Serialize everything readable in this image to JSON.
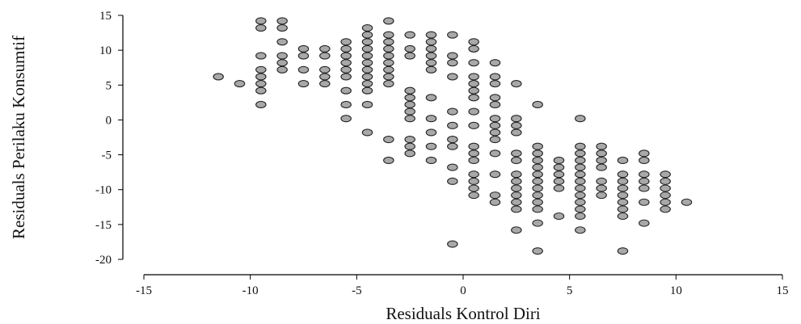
{
  "chart_data": {
    "type": "scatter",
    "title": "",
    "xlabel": "Residuals Kontrol Diri",
    "ylabel": "Residuals Perilaku Konsumtif",
    "xlim": [
      -15,
      15
    ],
    "ylim": [
      -20,
      15
    ],
    "xticks": [
      -15,
      -10,
      -5,
      0,
      5,
      10,
      15
    ],
    "yticks": [
      -20,
      -15,
      -10,
      -5,
      0,
      5,
      10,
      15
    ],
    "grid": false,
    "legend": "none",
    "marker_fill": "#a8a8a8",
    "marker_stroke": "#222222",
    "points": [
      [
        -11.5,
        6.2
      ],
      [
        -10.5,
        5.2
      ],
      [
        -9.5,
        14.2
      ],
      [
        -9.5,
        13.2
      ],
      [
        -9.5,
        9.2
      ],
      [
        -9.5,
        7.2
      ],
      [
        -9.5,
        6.2
      ],
      [
        -9.5,
        5.2
      ],
      [
        -9.5,
        4.2
      ],
      [
        -9.5,
        2.2
      ],
      [
        -8.5,
        14.2
      ],
      [
        -8.5,
        13.2
      ],
      [
        -8.5,
        11.2
      ],
      [
        -8.5,
        9.2
      ],
      [
        -8.5,
        8.2
      ],
      [
        -8.5,
        7.2
      ],
      [
        -7.5,
        10.2
      ],
      [
        -7.5,
        9.2
      ],
      [
        -7.5,
        7.2
      ],
      [
        -7.5,
        5.2
      ],
      [
        -6.5,
        10.2
      ],
      [
        -6.5,
        9.2
      ],
      [
        -6.5,
        7.2
      ],
      [
        -6.5,
        6.2
      ],
      [
        -6.5,
        5.2
      ],
      [
        -5.5,
        11.2
      ],
      [
        -5.5,
        10.2
      ],
      [
        -5.5,
        9.2
      ],
      [
        -5.5,
        8.2
      ],
      [
        -5.5,
        7.2
      ],
      [
        -5.5,
        6.2
      ],
      [
        -5.5,
        4.2
      ],
      [
        -5.5,
        2.2
      ],
      [
        -5.5,
        0.2
      ],
      [
        -4.5,
        13.2
      ],
      [
        -4.5,
        12.2
      ],
      [
        -4.5,
        11.2
      ],
      [
        -4.5,
        10.2
      ],
      [
        -4.5,
        9.2
      ],
      [
        -4.5,
        8.2
      ],
      [
        -4.5,
        7.2
      ],
      [
        -4.5,
        6.2
      ],
      [
        -4.5,
        5.2
      ],
      [
        -4.5,
        4.2
      ],
      [
        -4.5,
        2.2
      ],
      [
        -4.5,
        -1.8
      ],
      [
        -3.5,
        14.2
      ],
      [
        -3.5,
        12.2
      ],
      [
        -3.5,
        11.2
      ],
      [
        -3.5,
        10.2
      ],
      [
        -3.5,
        9.2
      ],
      [
        -3.5,
        8.2
      ],
      [
        -3.5,
        7.2
      ],
      [
        -3.5,
        6.2
      ],
      [
        -3.5,
        5.2
      ],
      [
        -3.5,
        -2.8
      ],
      [
        -3.5,
        -5.8
      ],
      [
        -2.5,
        12.2
      ],
      [
        -2.5,
        10.2
      ],
      [
        -2.5,
        9.2
      ],
      [
        -2.5,
        4.2
      ],
      [
        -2.5,
        3.2
      ],
      [
        -2.5,
        2.2
      ],
      [
        -2.5,
        1.2
      ],
      [
        -2.5,
        0.2
      ],
      [
        -2.5,
        -2.8
      ],
      [
        -2.5,
        -3.8
      ],
      [
        -2.5,
        -4.8
      ],
      [
        -1.5,
        12.2
      ],
      [
        -1.5,
        11.2
      ],
      [
        -1.5,
        10.2
      ],
      [
        -1.5,
        9.2
      ],
      [
        -1.5,
        8.2
      ],
      [
        -1.5,
        7.2
      ],
      [
        -1.5,
        3.2
      ],
      [
        -1.5,
        0.2
      ],
      [
        -1.5,
        -1.8
      ],
      [
        -1.5,
        -3.8
      ],
      [
        -1.5,
        -5.8
      ],
      [
        -0.5,
        12.2
      ],
      [
        -0.5,
        9.2
      ],
      [
        -0.5,
        8.2
      ],
      [
        -0.5,
        6.2
      ],
      [
        -0.5,
        1.2
      ],
      [
        -0.5,
        -0.8
      ],
      [
        -0.5,
        -2.8
      ],
      [
        -0.5,
        -3.8
      ],
      [
        -0.5,
        -6.8
      ],
      [
        -0.5,
        -8.8
      ],
      [
        -0.5,
        -17.8
      ],
      [
        0.5,
        11.2
      ],
      [
        0.5,
        10.2
      ],
      [
        0.5,
        8.2
      ],
      [
        0.5,
        6.2
      ],
      [
        0.5,
        5.2
      ],
      [
        0.5,
        4.2
      ],
      [
        0.5,
        3.2
      ],
      [
        0.5,
        1.2
      ],
      [
        0.5,
        -0.8
      ],
      [
        0.5,
        -3.8
      ],
      [
        0.5,
        -4.8
      ],
      [
        0.5,
        -5.8
      ],
      [
        0.5,
        -7.8
      ],
      [
        0.5,
        -8.8
      ],
      [
        0.5,
        -9.8
      ],
      [
        0.5,
        -10.8
      ],
      [
        1.5,
        8.2
      ],
      [
        1.5,
        6.2
      ],
      [
        1.5,
        5.2
      ],
      [
        1.5,
        3.2
      ],
      [
        1.5,
        2.2
      ],
      [
        1.5,
        0.2
      ],
      [
        1.5,
        -0.8
      ],
      [
        1.5,
        -1.8
      ],
      [
        1.5,
        -2.8
      ],
      [
        1.5,
        -4.8
      ],
      [
        1.5,
        -7.8
      ],
      [
        1.5,
        -10.8
      ],
      [
        1.5,
        -11.8
      ],
      [
        2.5,
        5.2
      ],
      [
        2.5,
        0.2
      ],
      [
        2.5,
        -0.8
      ],
      [
        2.5,
        -1.8
      ],
      [
        2.5,
        -4.8
      ],
      [
        2.5,
        -5.8
      ],
      [
        2.5,
        -7.8
      ],
      [
        2.5,
        -8.8
      ],
      [
        2.5,
        -9.8
      ],
      [
        2.5,
        -10.8
      ],
      [
        2.5,
        -11.8
      ],
      [
        2.5,
        -12.8
      ],
      [
        2.5,
        -15.8
      ],
      [
        3.5,
        2.2
      ],
      [
        3.5,
        -3.8
      ],
      [
        3.5,
        -4.8
      ],
      [
        3.5,
        -5.8
      ],
      [
        3.5,
        -6.8
      ],
      [
        3.5,
        -7.8
      ],
      [
        3.5,
        -8.8
      ],
      [
        3.5,
        -9.8
      ],
      [
        3.5,
        -10.8
      ],
      [
        3.5,
        -11.8
      ],
      [
        3.5,
        -12.8
      ],
      [
        3.5,
        -14.8
      ],
      [
        3.5,
        -18.8
      ],
      [
        4.5,
        -5.8
      ],
      [
        4.5,
        -6.8
      ],
      [
        4.5,
        -7.8
      ],
      [
        4.5,
        -8.8
      ],
      [
        4.5,
        -9.8
      ],
      [
        4.5,
        -13.8
      ],
      [
        5.5,
        0.2
      ],
      [
        5.5,
        -3.8
      ],
      [
        5.5,
        -4.8
      ],
      [
        5.5,
        -5.8
      ],
      [
        5.5,
        -6.8
      ],
      [
        5.5,
        -7.8
      ],
      [
        5.5,
        -8.8
      ],
      [
        5.5,
        -9.8
      ],
      [
        5.5,
        -10.8
      ],
      [
        5.5,
        -11.8
      ],
      [
        5.5,
        -12.8
      ],
      [
        5.5,
        -13.8
      ],
      [
        5.5,
        -15.8
      ],
      [
        6.5,
        -3.8
      ],
      [
        6.5,
        -4.8
      ],
      [
        6.5,
        -5.8
      ],
      [
        6.5,
        -6.8
      ],
      [
        6.5,
        -8.8
      ],
      [
        6.5,
        -9.8
      ],
      [
        6.5,
        -10.8
      ],
      [
        7.5,
        -5.8
      ],
      [
        7.5,
        -7.8
      ],
      [
        7.5,
        -8.8
      ],
      [
        7.5,
        -9.8
      ],
      [
        7.5,
        -10.8
      ],
      [
        7.5,
        -11.8
      ],
      [
        7.5,
        -12.8
      ],
      [
        7.5,
        -13.8
      ],
      [
        7.5,
        -18.8
      ],
      [
        8.5,
        -4.8
      ],
      [
        8.5,
        -5.8
      ],
      [
        8.5,
        -7.8
      ],
      [
        8.5,
        -8.8
      ],
      [
        8.5,
        -9.8
      ],
      [
        8.5,
        -11.8
      ],
      [
        8.5,
        -14.8
      ],
      [
        9.5,
        -7.8
      ],
      [
        9.5,
        -8.8
      ],
      [
        9.5,
        -9.8
      ],
      [
        9.5,
        -10.8
      ],
      [
        9.5,
        -11.8
      ],
      [
        9.5,
        -12.8
      ],
      [
        10.5,
        -11.8
      ]
    ]
  }
}
